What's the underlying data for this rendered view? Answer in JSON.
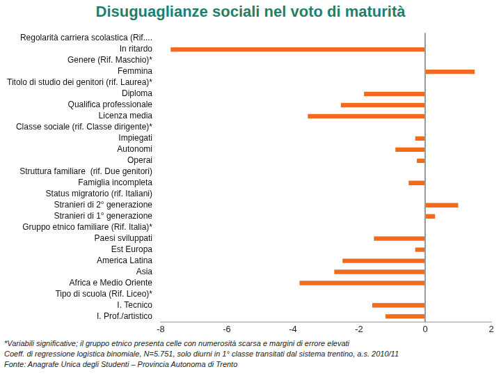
{
  "chart_data": {
    "type": "bar",
    "orientation": "horizontal",
    "title": "Disuguaglianze sociali nel voto di maturità",
    "categories": [
      "Regolarità carriera scolastica (Rif....",
      "In ritardo",
      "Genere (Rif. Maschio)*",
      "Femmina",
      "Titolo di studio dei genitori (rif. Laurea)*",
      "Diploma",
      "Qualifica professionale",
      "Licenza media",
      "Classe sociale (rif. Classe dirigente)*",
      "Impiegati",
      "Autonomi",
      "Operai",
      "Struttura familiare  (rif. Due genitori)",
      "Famiglia incompleta",
      "Status migratorio (rif. Italiani)",
      "Stranieri di 2° generazione",
      "Stranieri di 1° generazione",
      "Gruppo etnico familiare (Rif. Italia)*",
      "Paesi sviluppati",
      "Est Europa",
      "America Latina",
      "Asia",
      "Africa e Medio Oriente",
      "Tipo di scuola (Rif. Liceo)*",
      "I. Tecnico",
      "I. Prof./artistico"
    ],
    "values": [
      null,
      -7.7,
      null,
      1.5,
      null,
      -1.85,
      -2.55,
      -3.55,
      null,
      -0.3,
      -0.9,
      -0.25,
      null,
      -0.5,
      null,
      1.0,
      0.3,
      null,
      -1.55,
      -0.3,
      -2.5,
      -2.75,
      -3.8,
      null,
      -1.6,
      -1.2
    ],
    "color": "#f26b1d",
    "xlim": [
      -8,
      2
    ],
    "xticks": [
      -8,
      -6,
      -4,
      -2,
      0,
      2
    ],
    "grid": false,
    "annotations": [
      "*Variabili significative; il gruppo etnico presenta celle con numerosità scarsa e margini di errore elevati",
      "Coeff. di regressione logistica binomiale, N=5.751, solo diurni in 1° classe transitati dal sistema trentino, a.s. 2010/11",
      "Fonte: Anagrafe Unica degli Studenti – Provincia Autonoma di Trento"
    ]
  }
}
